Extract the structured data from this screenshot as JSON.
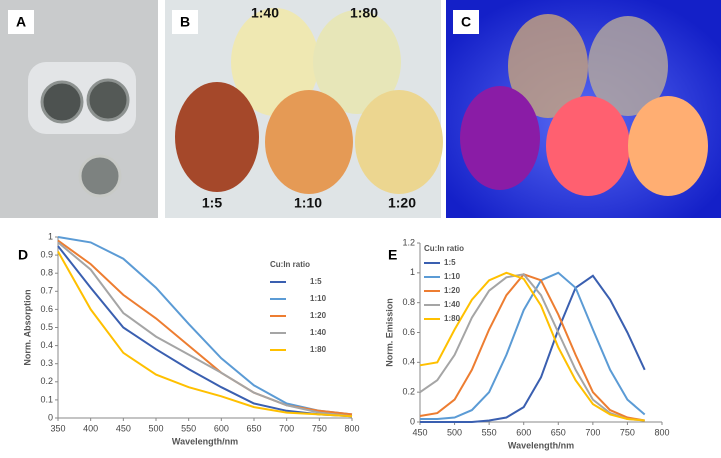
{
  "photos": {
    "panels": [
      {
        "label": "A"
      },
      {
        "label": "B",
        "ratios": [
          "1:40",
          "1:80",
          "1:5",
          "1:10",
          "1:20"
        ]
      },
      {
        "label": "C"
      }
    ]
  },
  "chart_data": [
    {
      "type": "line",
      "panel": "D",
      "xlabel": "Wavelength/nm",
      "ylabel": "Norm. Absorption",
      "legend_title": "Cu:In ratio",
      "legend": "right",
      "grid": false,
      "x": [
        350,
        400,
        450,
        500,
        550,
        600,
        650,
        700,
        750,
        800
      ],
      "xlim": [
        350,
        800
      ],
      "xticks": [
        350,
        400,
        450,
        500,
        550,
        600,
        650,
        700,
        750,
        800
      ],
      "ylim": [
        0,
        1
      ],
      "yticks": [
        0,
        0.1,
        0.2,
        0.3,
        0.4,
        0.5,
        0.6,
        0.7,
        0.8,
        0.9,
        1
      ],
      "series": [
        {
          "name": "1:5",
          "color": "#3a5fb0",
          "values": [
            0.95,
            0.72,
            0.5,
            0.38,
            0.27,
            0.17,
            0.08,
            0.04,
            0.02,
            0.01
          ]
        },
        {
          "name": "1:10",
          "color": "#5b9bd5",
          "values": [
            1.0,
            0.97,
            0.88,
            0.72,
            0.52,
            0.33,
            0.18,
            0.08,
            0.04,
            0.02
          ]
        },
        {
          "name": "1:20",
          "color": "#ed7d31",
          "values": [
            0.98,
            0.85,
            0.68,
            0.55,
            0.4,
            0.25,
            0.14,
            0.07,
            0.04,
            0.02
          ]
        },
        {
          "name": "1:40",
          "color": "#a5a5a5",
          "values": [
            0.97,
            0.82,
            0.58,
            0.45,
            0.35,
            0.25,
            0.14,
            0.07,
            0.03,
            0.01
          ]
        },
        {
          "name": "1:80",
          "color": "#ffc000",
          "values": [
            0.92,
            0.6,
            0.36,
            0.24,
            0.17,
            0.12,
            0.06,
            0.03,
            0.02,
            0.01
          ]
        }
      ]
    },
    {
      "type": "line",
      "panel": "E",
      "xlabel": "Wavelength/nm",
      "ylabel": "Norm. Emission",
      "legend_title": "Cu:In ratio",
      "legend": "upper left",
      "grid": false,
      "x": [
        450,
        475,
        500,
        525,
        550,
        575,
        600,
        625,
        650,
        675,
        700,
        725,
        750,
        775
      ],
      "xlim": [
        450,
        800
      ],
      "xticks": [
        450,
        500,
        550,
        600,
        650,
        700,
        750,
        800
      ],
      "ylim": [
        0,
        1.2
      ],
      "yticks": [
        0,
        0.2,
        0.4,
        0.6,
        0.8,
        1,
        1.2
      ],
      "series": [
        {
          "name": "1:5",
          "color": "#3a5fb0",
          "values": [
            0,
            0,
            0,
            0,
            0.01,
            0.03,
            0.1,
            0.3,
            0.62,
            0.9,
            0.98,
            0.82,
            0.6,
            0.35
          ]
        },
        {
          "name": "1:10",
          "color": "#5b9bd5",
          "values": [
            0.02,
            0.02,
            0.03,
            0.08,
            0.2,
            0.45,
            0.75,
            0.95,
            1.0,
            0.9,
            0.62,
            0.35,
            0.15,
            0.05
          ]
        },
        {
          "name": "1:20",
          "color": "#ed7d31",
          "values": [
            0.04,
            0.06,
            0.15,
            0.35,
            0.62,
            0.85,
            0.99,
            0.95,
            0.72,
            0.45,
            0.2,
            0.08,
            0.03,
            0.01
          ]
        },
        {
          "name": "1:40",
          "color": "#a5a5a5",
          "values": [
            0.2,
            0.28,
            0.45,
            0.7,
            0.88,
            0.97,
            0.99,
            0.85,
            0.6,
            0.35,
            0.15,
            0.06,
            0.02,
            0.01
          ]
        },
        {
          "name": "1:80",
          "color": "#ffc000",
          "values": [
            0.38,
            0.4,
            0.62,
            0.82,
            0.95,
            1.0,
            0.96,
            0.78,
            0.5,
            0.28,
            0.12,
            0.05,
            0.02,
            0.01
          ]
        }
      ]
    }
  ]
}
